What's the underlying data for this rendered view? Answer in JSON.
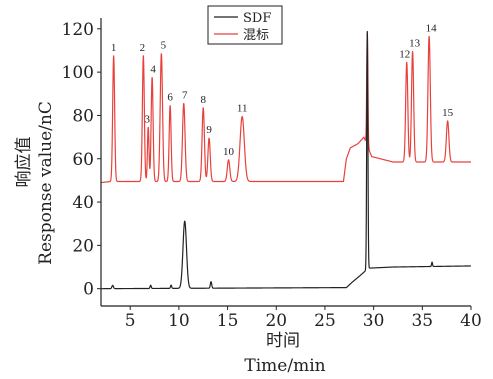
{
  "chart_data": {
    "type": "line",
    "xlabel_cn": "时间",
    "xlabel": "Time/min",
    "ylabel_cn": "响应值",
    "ylabel": "Response value/nC",
    "xlim": [
      2,
      40
    ],
    "ylim": [
      -8,
      125
    ],
    "x_ticks": [
      5,
      10,
      15,
      20,
      25,
      30,
      35,
      40
    ],
    "y_ticks": [
      0,
      20,
      40,
      60,
      80,
      100,
      120
    ],
    "grid": false,
    "legend_position": "top-center",
    "series": [
      {
        "name": "SDF",
        "color": "#222222",
        "baseline": [
          [
            2,
            0
          ],
          [
            27.2,
            0.5
          ],
          [
            27.8,
            3
          ],
          [
            28.6,
            6
          ],
          [
            29.1,
            8
          ],
          [
            29.6,
            9.5
          ],
          [
            32,
            10
          ],
          [
            40,
            10.5
          ]
        ],
        "peaks": [
          {
            "x": 3.2,
            "h": 1.5,
            "w": 0.08
          },
          {
            "x": 7.1,
            "h": 1.5,
            "w": 0.06
          },
          {
            "x": 9.2,
            "h": 1.5,
            "w": 0.06
          },
          {
            "x": 10.6,
            "h": 31,
            "w": 0.18
          },
          {
            "x": 13.3,
            "h": 3,
            "w": 0.07
          },
          {
            "x": 29.35,
            "h": 110,
            "w": 0.06
          },
          {
            "x": 36.0,
            "h": 2,
            "w": 0.05
          }
        ]
      },
      {
        "name": "混标",
        "color": "#e8413c",
        "baseline": [
          [
            2,
            49
          ],
          [
            3,
            49.5
          ],
          [
            26.9,
            49.5
          ],
          [
            27.2,
            60
          ],
          [
            27.6,
            65
          ],
          [
            28.4,
            67
          ],
          [
            29.0,
            70
          ],
          [
            29.8,
            61
          ],
          [
            32,
            58.5
          ],
          [
            40,
            58.5
          ]
        ],
        "peaks": [
          {
            "x": 3.3,
            "h": 58,
            "w": 0.1,
            "label": "1"
          },
          {
            "x": 6.35,
            "h": 58,
            "w": 0.1,
            "label": "2"
          },
          {
            "x": 6.85,
            "h": 25,
            "w": 0.08,
            "label": "3"
          },
          {
            "x": 7.25,
            "h": 48,
            "w": 0.1,
            "label": "4"
          },
          {
            "x": 8.2,
            "h": 59,
            "w": 0.12,
            "label": "5"
          },
          {
            "x": 9.1,
            "h": 35,
            "w": 0.1,
            "label": "6"
          },
          {
            "x": 10.5,
            "h": 36,
            "w": 0.13,
            "label": "7"
          },
          {
            "x": 12.5,
            "h": 34,
            "w": 0.12,
            "label": "8"
          },
          {
            "x": 13.1,
            "h": 20,
            "w": 0.12,
            "label": "9"
          },
          {
            "x": 15.1,
            "h": 10,
            "w": 0.13,
            "label": "10"
          },
          {
            "x": 16.5,
            "h": 30,
            "w": 0.22,
            "label": "11"
          },
          {
            "x": 29.35,
            "h": 52,
            "w": 0.06
          },
          {
            "x": 33.4,
            "h": 46,
            "w": 0.11,
            "label": "12"
          },
          {
            "x": 34.0,
            "h": 51,
            "w": 0.11,
            "label": "13"
          },
          {
            "x": 35.7,
            "h": 58,
            "w": 0.12,
            "label": "14"
          },
          {
            "x": 37.6,
            "h": 19,
            "w": 0.13,
            "label": "15"
          }
        ]
      }
    ]
  }
}
